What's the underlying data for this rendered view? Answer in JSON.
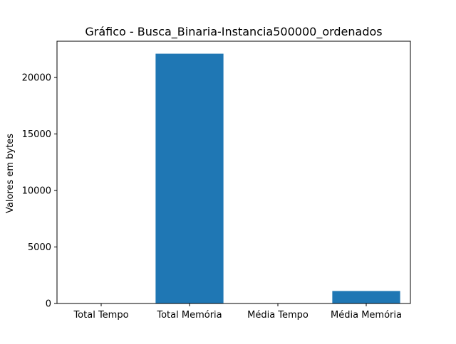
{
  "chart_data": {
    "type": "bar",
    "title": "Gráfico - Busca_Binaria-Instancia500000_ordenados",
    "xlabel": "",
    "ylabel": "Valores em bytes",
    "categories": [
      "Total Tempo",
      "Total Memória",
      "Média Tempo",
      "Média Memória"
    ],
    "values": [
      0.6,
      22100,
      1.2e-05,
      1105
    ],
    "ylim": [
      0,
      23205
    ],
    "yticks": [
      0,
      5000,
      10000,
      15000,
      20000
    ],
    "grid": false,
    "legend": "none",
    "bar_color": "#1f77b4"
  }
}
